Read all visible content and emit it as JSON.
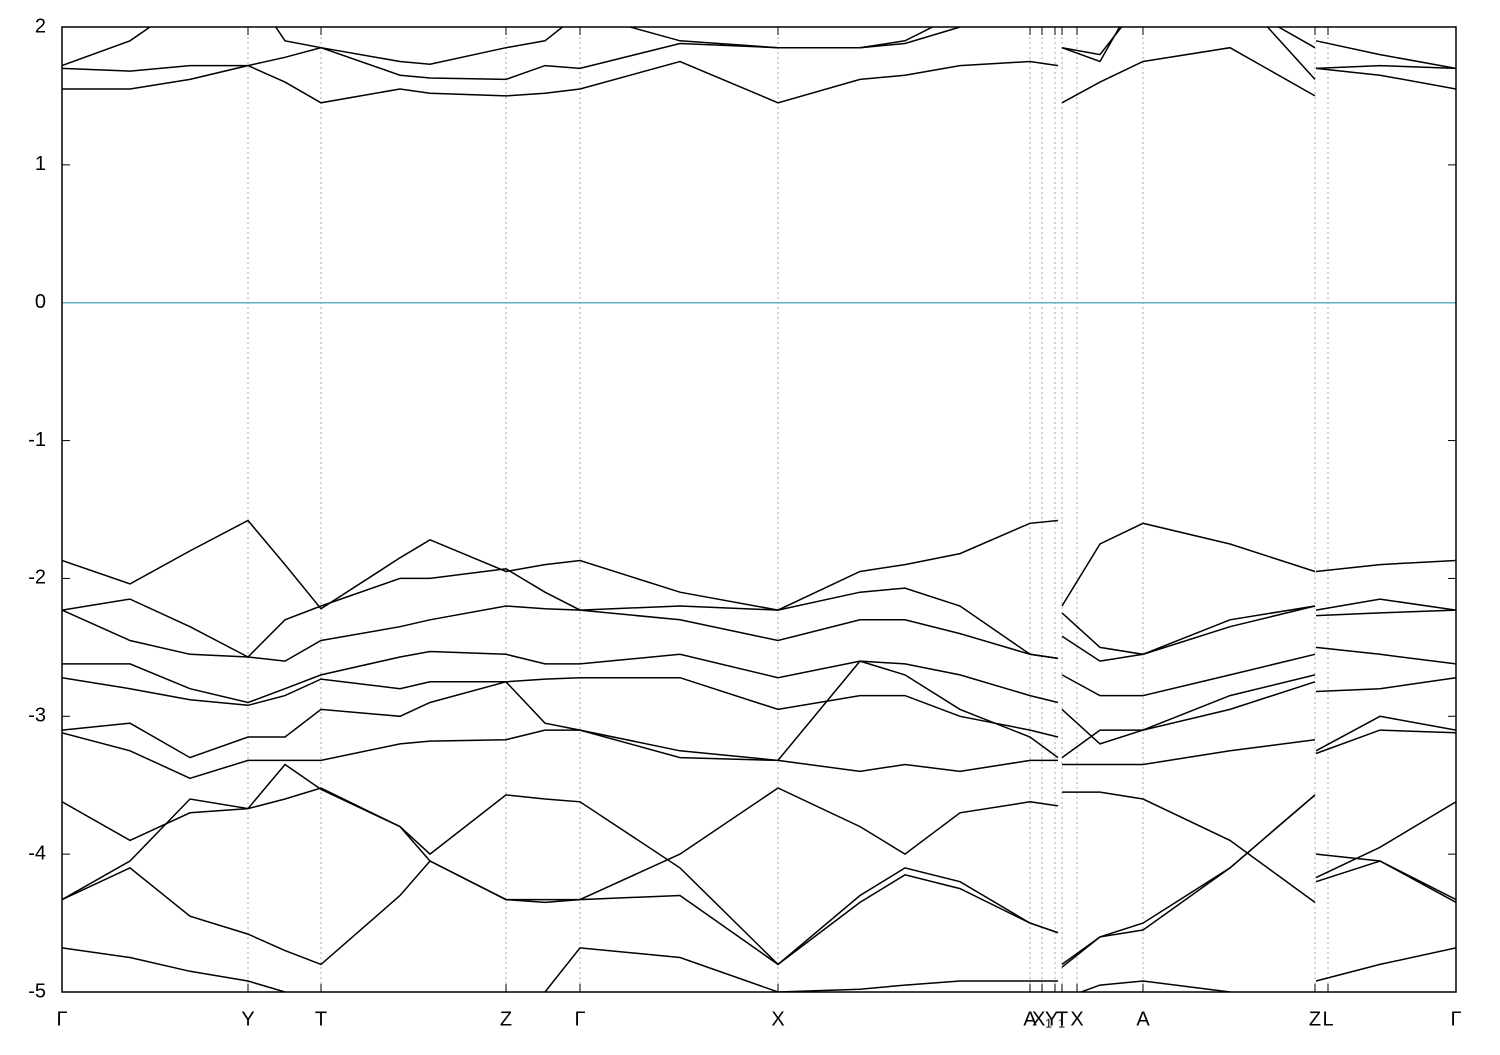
{
  "chart_data": {
    "type": "line",
    "x": [
      0,
      0.68,
      1.28,
      1.86,
      2.23,
      2.59,
      3.38,
      3.68,
      4.44,
      4.83,
      5.18,
      6.18,
      7.16,
      7.98,
      8.43,
      8.98,
      9.68,
      9.96,
      9.98,
      10.0,
      10.38,
      10.81,
      11.68,
      12.53,
      12.535,
      12.54,
      13.18,
      13.94
    ],
    "xlim": [
      0,
      13.94
    ],
    "ylim": [
      -5,
      2
    ],
    "yticks": [
      -5,
      -4,
      -3,
      -2,
      -1,
      0,
      1,
      2
    ],
    "xticks": [
      {
        "value": 0,
        "label": "Γ"
      },
      {
        "value": 1.86,
        "label": "Y"
      },
      {
        "value": 2.59,
        "label": "T"
      },
      {
        "value": 4.44,
        "label": "Z"
      },
      {
        "value": 5.18,
        "label": "Γ"
      },
      {
        "value": 7.16,
        "label": "X"
      },
      {
        "value": 9.68,
        "label": "A"
      },
      {
        "value": 9.8,
        "label": "X₁"
      },
      {
        "value": 9.93,
        "label": "Y₁"
      },
      {
        "value": 10.0,
        "label": "T"
      },
      {
        "value": 10.15,
        "label": "X"
      },
      {
        "value": 10.81,
        "label": "A"
      },
      {
        "value": 12.53,
        "label": "Z"
      },
      {
        "value": 12.66,
        "label": "L"
      },
      {
        "value": 13.94,
        "label": "Γ"
      }
    ],
    "grid": true,
    "fermi_level": {
      "value": 0,
      "color": "#5fb4c8"
    },
    "series": [
      {
        "color": "#000000",
        "values": [
          -1.87,
          -2.04,
          -1.8,
          -1.58,
          -1.9,
          -2.22,
          -1.85,
          -1.72,
          -1.95,
          -1.9,
          -1.87,
          -2.1,
          -2.23,
          -1.95,
          -1.9,
          -1.82,
          -1.6,
          -1.58,
          null,
          -2.2,
          -1.75,
          -1.6,
          -1.75,
          -1.95,
          null,
          -1.95,
          -1.9,
          -1.87
        ]
      },
      {
        "color": "#000000",
        "values": [
          -2.23,
          -2.15,
          -2.35,
          -2.57,
          -2.3,
          -2.2,
          -2.0,
          -2.0,
          -1.93,
          -2.1,
          -2.23,
          -2.2,
          -2.23,
          -2.1,
          -2.07,
          -2.2,
          -2.55,
          -2.58,
          null,
          -2.25,
          -2.5,
          -2.55,
          -2.35,
          -2.2,
          null,
          -2.23,
          -2.15,
          -2.23
        ]
      },
      {
        "color": "#000000",
        "values": [
          -2.23,
          -2.45,
          -2.55,
          -2.57,
          -2.6,
          -2.45,
          -2.35,
          -2.3,
          -2.2,
          -2.22,
          -2.23,
          -2.3,
          -2.45,
          -2.3,
          -2.3,
          -2.4,
          -2.55,
          -2.58,
          null,
          -2.42,
          -2.6,
          -2.55,
          -2.3,
          -2.2,
          null,
          -2.27,
          -2.25,
          -2.23
        ]
      },
      {
        "color": "#000000",
        "values": [
          -2.62,
          -2.62,
          -2.8,
          -2.9,
          -2.8,
          -2.7,
          -2.57,
          -2.53,
          -2.55,
          -2.62,
          -2.62,
          -2.55,
          -2.72,
          -2.6,
          -2.62,
          -2.7,
          -2.85,
          -2.9,
          null,
          -2.7,
          -2.85,
          -2.85,
          -2.7,
          -2.55,
          null,
          -2.5,
          -2.55,
          -2.62
        ]
      },
      {
        "color": "#000000",
        "values": [
          -2.72,
          -2.8,
          -2.88,
          -2.92,
          -2.85,
          -2.73,
          -2.8,
          -2.75,
          -2.75,
          -2.73,
          -2.72,
          -2.72,
          -2.95,
          -2.85,
          -2.85,
          -3.0,
          -3.1,
          -3.15,
          null,
          -2.95,
          -3.2,
          -3.1,
          -2.85,
          -2.7,
          null,
          -2.82,
          -2.8,
          -2.72
        ]
      },
      {
        "color": "#000000",
        "values": [
          -3.1,
          -3.05,
          -3.3,
          -3.15,
          -3.15,
          -2.95,
          -3.0,
          -2.9,
          -2.75,
          -3.05,
          -3.1,
          -3.3,
          -3.32,
          -2.6,
          -2.7,
          -2.95,
          -3.15,
          -3.3,
          null,
          -3.3,
          -3.1,
          -3.1,
          -2.95,
          -2.75,
          null,
          -3.25,
          -3.0,
          -3.1
        ]
      },
      {
        "color": "#000000",
        "values": [
          -3.12,
          -3.25,
          -3.45,
          -3.32,
          -3.32,
          -3.32,
          -3.2,
          -3.18,
          -3.17,
          -3.1,
          -3.1,
          -3.25,
          -3.32,
          -3.4,
          -3.35,
          -3.4,
          -3.32,
          -3.32,
          null,
          -3.35,
          -3.35,
          -3.35,
          -3.25,
          -3.17,
          null,
          -3.27,
          -3.1,
          -3.12
        ]
      },
      {
        "color": "#000000",
        "values": [
          -3.62,
          -3.9,
          -3.7,
          -3.67,
          -3.6,
          -3.52,
          -3.8,
          -4.0,
          -3.57,
          -3.6,
          -3.62,
          -4.1,
          -4.8,
          -4.35,
          -4.15,
          -4.25,
          -4.5,
          -4.57,
          null,
          -3.55,
          -3.55,
          -3.6,
          -3.9,
          -4.35,
          null,
          -4.0,
          -4.05,
          -4.35
        ]
      },
      {
        "color": "#000000",
        "values": [
          -4.33,
          -4.05,
          -3.6,
          -3.67,
          -3.35,
          -3.53,
          -3.8,
          -4.05,
          -4.33,
          -4.33,
          -4.33,
          -4.0,
          -3.52,
          -3.8,
          -4.0,
          -3.7,
          -3.62,
          -3.65,
          null,
          -4.8,
          -4.6,
          -4.5,
          -4.1,
          -3.57,
          null,
          -4.17,
          -3.95,
          -3.62
        ]
      },
      {
        "color": "#000000",
        "values": [
          -4.33,
          -4.1,
          -4.45,
          -4.58,
          -4.7,
          -4.8,
          -4.3,
          -4.05,
          -4.33,
          -4.35,
          -4.33,
          -4.3,
          -4.8,
          -4.3,
          -4.1,
          -4.2,
          -4.5,
          -4.57,
          null,
          -4.82,
          -4.6,
          -4.55,
          -4.1,
          -3.57,
          null,
          -4.2,
          -4.05,
          -4.33
        ]
      },
      {
        "color": "#000000",
        "values": [
          -4.68,
          -4.75,
          -4.85,
          -4.92,
          -5.0,
          -5.1,
          -5.3,
          -5.3,
          -5.3,
          -5.0,
          -4.68,
          -4.75,
          -5.0,
          -4.98,
          -4.95,
          -4.92,
          -4.92,
          -4.92,
          null,
          -5.05,
          -4.95,
          -4.92,
          -5.0,
          -5.2,
          null,
          -4.92,
          -4.8,
          -4.68
        ]
      },
      {
        "color": "#000000",
        "values": [
          1.55,
          1.55,
          1.62,
          1.72,
          1.6,
          1.45,
          1.55,
          1.52,
          1.5,
          1.52,
          1.55,
          1.75,
          1.45,
          1.62,
          1.65,
          1.72,
          1.75,
          1.72,
          null,
          1.45,
          1.6,
          1.75,
          1.85,
          1.5,
          null,
          1.7,
          1.65,
          1.55
        ]
      },
      {
        "color": "#000000",
        "values": [
          1.7,
          1.68,
          1.72,
          1.72,
          1.78,
          1.85,
          1.65,
          1.63,
          1.62,
          1.72,
          1.7,
          1.88,
          1.85,
          1.85,
          1.9,
          2.1,
          2.3,
          2.4,
          null,
          1.85,
          1.8,
          2.2,
          2.3,
          1.62,
          null,
          1.7,
          1.72,
          1.7
        ]
      },
      {
        "color": "#000000",
        "values": [
          1.72,
          1.9,
          2.2,
          2.3,
          1.9,
          1.85,
          1.75,
          1.73,
          1.85,
          1.9,
          2.1,
          1.9,
          1.85,
          1.85,
          1.88,
          2.0,
          2.3,
          2.3,
          null,
          1.85,
          1.75,
          2.3,
          2.2,
          1.85,
          null,
          1.9,
          1.8,
          1.7
        ]
      }
    ]
  }
}
